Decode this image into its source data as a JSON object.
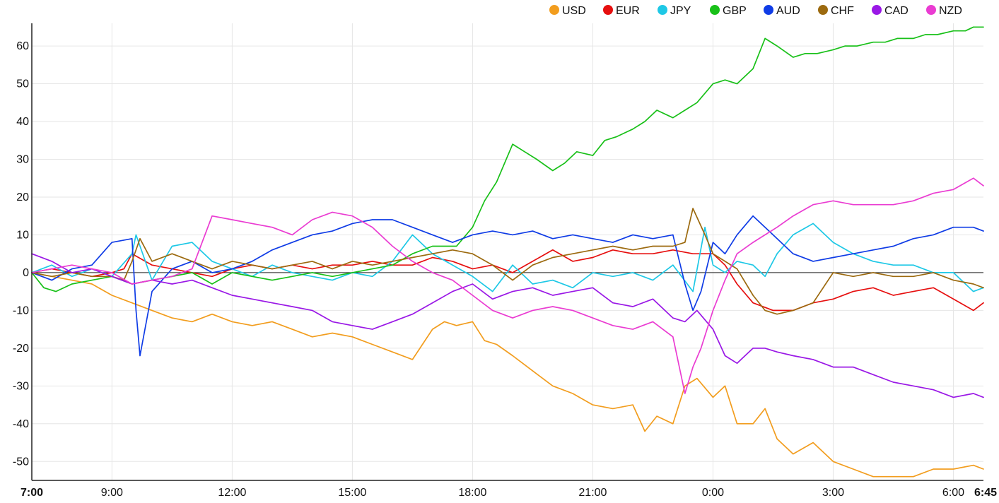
{
  "chart_data": {
    "type": "line",
    "title": "",
    "xlabel": "",
    "ylabel": "",
    "x_unit": "hours since 7:00",
    "x_ticks": [
      {
        "label": "7:00",
        "x": 0,
        "bold": true
      },
      {
        "label": "9:00",
        "x": 2
      },
      {
        "label": "12:00",
        "x": 5
      },
      {
        "label": "15:00",
        "x": 8
      },
      {
        "label": "18:00",
        "x": 11
      },
      {
        "label": "21:00",
        "x": 14
      },
      {
        "label": "0:00",
        "x": 17
      },
      {
        "label": "3:00",
        "x": 20
      },
      {
        "label": "6:00",
        "x": 23
      },
      {
        "label": "6:45",
        "x": 23.75,
        "bold": true
      }
    ],
    "xlim": [
      0,
      23.75
    ],
    "ylim": [
      -55,
      66
    ],
    "y_ticks": [
      60,
      50,
      40,
      30,
      20,
      10,
      0,
      -10,
      -20,
      -30,
      -40,
      -50
    ],
    "grid": true,
    "zero_line": true,
    "legend_position": "top-right",
    "series": [
      {
        "name": "USD",
        "color": "#f29d1e",
        "x": [
          0,
          0.5,
          1,
          1.5,
          2,
          2.5,
          3,
          3.5,
          4,
          4.5,
          5,
          5.5,
          6,
          6.5,
          7,
          7.5,
          8,
          8.5,
          9,
          9.5,
          10,
          10.3,
          10.6,
          11,
          11.3,
          11.6,
          12,
          12.5,
          13,
          13.5,
          14,
          14.5,
          15,
          15.3,
          15.6,
          16,
          16.3,
          16.6,
          17,
          17.3,
          17.6,
          18,
          18.3,
          18.6,
          19,
          19.5,
          20,
          20.5,
          21,
          21.5,
          22,
          22.5,
          23,
          23.5,
          23.75
        ],
        "y": [
          0,
          -1,
          -2,
          -3,
          -6,
          -8,
          -10,
          -12,
          -13,
          -11,
          -13,
          -14,
          -13,
          -15,
          -17,
          -16,
          -17,
          -19,
          -21,
          -23,
          -15,
          -13,
          -14,
          -13,
          -18,
          -19,
          -22,
          -26,
          -30,
          -32,
          -35,
          -36,
          -35,
          -42,
          -38,
          -40,
          -30,
          -28,
          -33,
          -30,
          -40,
          -40,
          -36,
          -44,
          -48,
          -45,
          -50,
          -52,
          -54,
          -54,
          -54,
          -52,
          -52,
          -51,
          -52
        ]
      },
      {
        "name": "EUR",
        "color": "#e60f0f",
        "x": [
          0,
          0.5,
          1,
          1.5,
          2,
          2.3,
          2.5,
          3,
          3.5,
          4,
          4.5,
          5,
          5.5,
          6,
          6.5,
          7,
          7.5,
          8,
          8.5,
          9,
          9.5,
          10,
          10.5,
          11,
          11.5,
          12,
          12.5,
          13,
          13.5,
          14,
          14.5,
          15,
          15.5,
          16,
          16.5,
          17,
          17.3,
          17.6,
          18,
          18.5,
          19,
          19.5,
          20,
          20.5,
          21,
          21.5,
          22,
          22.5,
          23,
          23.5,
          23.75
        ],
        "y": [
          0,
          1,
          0,
          -1,
          0,
          1,
          5,
          2,
          1,
          0,
          -1,
          1,
          2,
          1,
          2,
          1,
          2,
          2,
          3,
          2,
          2,
          4,
          3,
          1,
          2,
          0,
          3,
          6,
          3,
          4,
          6,
          5,
          5,
          6,
          5,
          5,
          2,
          -3,
          -8,
          -10,
          -10,
          -8,
          -7,
          -5,
          -4,
          -6,
          -5,
          -4,
          -7,
          -10,
          -8
        ]
      },
      {
        "name": "JPY",
        "color": "#1ec8e6",
        "x": [
          0,
          0.5,
          1,
          1.5,
          2,
          2.5,
          2.6,
          3,
          3.5,
          4,
          4.5,
          5,
          5.5,
          6,
          6.5,
          7,
          7.5,
          8,
          8.5,
          9,
          9.5,
          10,
          10.5,
          11,
          11.5,
          12,
          12.5,
          13,
          13.5,
          14,
          14.5,
          15,
          15.5,
          16,
          16.5,
          16.8,
          17,
          17.3,
          17.6,
          18,
          18.3,
          18.6,
          19,
          19.5,
          20,
          20.5,
          21,
          21.5,
          22,
          22.5,
          23,
          23.5,
          23.75
        ],
        "y": [
          0,
          2,
          -1,
          1,
          -1,
          5,
          10,
          -2,
          7,
          8,
          3,
          1,
          -1,
          2,
          0,
          -1,
          -2,
          0,
          -1,
          3,
          10,
          5,
          2,
          -1,
          -5,
          2,
          -3,
          -2,
          -4,
          0,
          -1,
          0,
          -2,
          2,
          -5,
          12,
          2,
          0,
          3,
          2,
          -1,
          5,
          10,
          13,
          8,
          5,
          3,
          2,
          2,
          0,
          0,
          -5,
          -4
        ]
      },
      {
        "name": "GBP",
        "color": "#18c018",
        "x": [
          0,
          0.3,
          0.6,
          1,
          1.5,
          2,
          2.5,
          3,
          3.5,
          4,
          4.5,
          5,
          5.5,
          6,
          6.5,
          7,
          7.5,
          8,
          8.5,
          9,
          9.5,
          10,
          10.3,
          10.6,
          11,
          11.3,
          11.6,
          12,
          12.3,
          12.6,
          13,
          13.3,
          13.6,
          14,
          14.3,
          14.6,
          15,
          15.3,
          15.6,
          16,
          16.3,
          16.6,
          17,
          17.3,
          17.6,
          18,
          18.3,
          18.6,
          19,
          19.3,
          19.6,
          20,
          20.3,
          20.6,
          21,
          21.3,
          21.6,
          22,
          22.3,
          22.6,
          23,
          23.3,
          23.5,
          23.75
        ],
        "y": [
          0,
          -4,
          -5,
          -3,
          -2,
          -1,
          -3,
          -2,
          -1,
          0,
          -3,
          0,
          -1,
          -2,
          -1,
          0,
          -1,
          0,
          1,
          2,
          5,
          7,
          7,
          7,
          12,
          19,
          24,
          34,
          32,
          30,
          27,
          29,
          32,
          31,
          35,
          36,
          38,
          40,
          43,
          41,
          43,
          45,
          50,
          51,
          50,
          54,
          62,
          60,
          57,
          58,
          58,
          59,
          60,
          60,
          61,
          61,
          62,
          62,
          63,
          63,
          64,
          64,
          65,
          65
        ]
      },
      {
        "name": "AUD",
        "color": "#0f3ce6",
        "x": [
          0,
          0.5,
          1,
          1.5,
          2,
          2.5,
          2.6,
          2.7,
          3,
          3.5,
          4,
          4.5,
          5,
          5.5,
          6,
          6.5,
          7,
          7.5,
          8,
          8.5,
          9,
          9.5,
          10,
          10.5,
          11,
          11.5,
          12,
          12.5,
          13,
          13.5,
          14,
          14.5,
          15,
          15.5,
          16,
          16.3,
          16.5,
          16.7,
          17,
          17.3,
          17.6,
          18,
          18.3,
          18.6,
          19,
          19.5,
          20,
          20.5,
          21,
          21.5,
          22,
          22.5,
          23,
          23.5,
          23.75
        ],
        "y": [
          0,
          -2,
          1,
          2,
          8,
          9,
          -10,
          -22,
          -5,
          1,
          3,
          0,
          1,
          3,
          6,
          8,
          10,
          11,
          13,
          14,
          14,
          12,
          10,
          8,
          10,
          11,
          10,
          11,
          9,
          10,
          9,
          8,
          10,
          9,
          10,
          -3,
          -10,
          -5,
          8,
          5,
          10,
          15,
          12,
          9,
          5,
          3,
          4,
          5,
          6,
          7,
          9,
          10,
          12,
          12,
          11
        ]
      },
      {
        "name": "CHF",
        "color": "#9c6a0f",
        "x": [
          0,
          0.5,
          1,
          1.5,
          2,
          2.3,
          2.5,
          2.7,
          3,
          3.5,
          4,
          4.5,
          5,
          5.5,
          6,
          6.5,
          7,
          7.5,
          8,
          8.5,
          9,
          9.5,
          10,
          10.5,
          11,
          11.5,
          12,
          12.5,
          13,
          13.5,
          14,
          14.5,
          15,
          15.5,
          16,
          16.3,
          16.5,
          16.8,
          17,
          17.3,
          17.6,
          18,
          18.3,
          18.6,
          19,
          19.5,
          20,
          20.5,
          21,
          21.5,
          22,
          22.5,
          23,
          23.5,
          23.75
        ],
        "y": [
          0,
          -1,
          0,
          -1,
          -1,
          -2,
          3,
          9,
          3,
          5,
          3,
          1,
          3,
          2,
          1,
          2,
          3,
          1,
          3,
          2,
          3,
          4,
          5,
          6,
          5,
          2,
          -2,
          2,
          4,
          5,
          6,
          7,
          6,
          7,
          7,
          8,
          17,
          10,
          5,
          3,
          1,
          -6,
          -10,
          -11,
          -10,
          -8,
          0,
          -1,
          0,
          -1,
          -1,
          0,
          -2,
          -3,
          -4
        ]
      },
      {
        "name": "CAD",
        "color": "#9a18e6",
        "x": [
          0,
          0.5,
          1,
          1.5,
          2,
          2.5,
          3,
          3.5,
          4,
          4.5,
          5,
          5.5,
          6,
          6.5,
          7,
          7.5,
          8,
          8.5,
          9,
          9.5,
          10,
          10.5,
          11,
          11.5,
          12,
          12.5,
          13,
          13.5,
          14,
          14.5,
          15,
          15.5,
          16,
          16.3,
          16.6,
          17,
          17.3,
          17.6,
          18,
          18.3,
          18.6,
          19,
          19.5,
          20,
          20.5,
          21,
          21.5,
          22,
          22.5,
          23,
          23.5,
          23.75
        ],
        "y": [
          5,
          3,
          0,
          1,
          -1,
          -3,
          -2,
          -3,
          -2,
          -4,
          -6,
          -7,
          -8,
          -9,
          -10,
          -13,
          -14,
          -15,
          -13,
          -11,
          -8,
          -5,
          -3,
          -7,
          -5,
          -4,
          -6,
          -5,
          -4,
          -8,
          -9,
          -7,
          -12,
          -13,
          -10,
          -15,
          -22,
          -24,
          -20,
          -20,
          -21,
          -22,
          -23,
          -25,
          -25,
          -27,
          -29,
          -30,
          -31,
          -33,
          -32,
          -33
        ]
      },
      {
        "name": "NZD",
        "color": "#ea3cd2",
        "x": [
          0,
          0.5,
          1,
          1.5,
          2,
          2.5,
          3,
          3.5,
          4,
          4.5,
          5,
          5.5,
          6,
          6.5,
          7,
          7.5,
          8,
          8.5,
          9,
          9.5,
          10,
          10.5,
          11,
          11.5,
          12,
          12.5,
          13,
          13.5,
          14,
          14.5,
          15,
          15.5,
          16,
          16.3,
          16.5,
          16.7,
          17,
          17.3,
          17.6,
          18,
          18.3,
          18.6,
          19,
          19.5,
          20,
          20.5,
          21,
          21.5,
          22,
          22.5,
          23,
          23.5,
          23.75
        ],
        "y": [
          0,
          1,
          2,
          1,
          0,
          -3,
          -2,
          -1,
          1,
          15,
          14,
          13,
          12,
          10,
          14,
          16,
          15,
          12,
          7,
          3,
          0,
          -2,
          -6,
          -10,
          -12,
          -10,
          -9,
          -10,
          -12,
          -14,
          -15,
          -13,
          -17,
          -32,
          -25,
          -20,
          -10,
          -2,
          5,
          8,
          10,
          12,
          15,
          18,
          19,
          18,
          18,
          18,
          19,
          21,
          22,
          25,
          23
        ]
      }
    ]
  }
}
